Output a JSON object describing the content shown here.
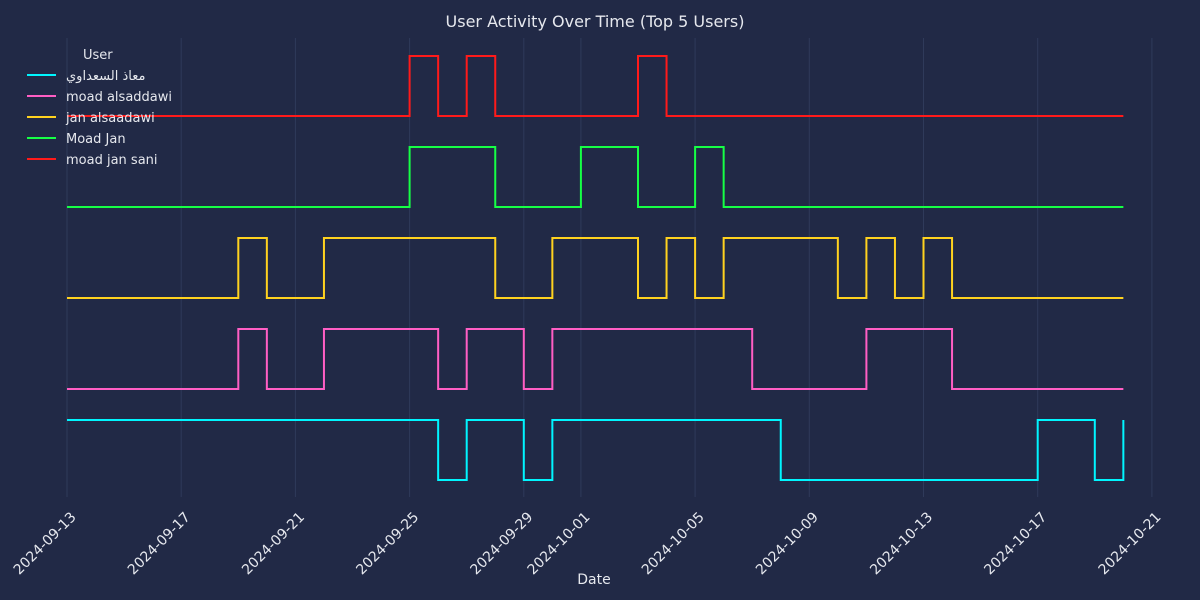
{
  "chart_data": {
    "type": "line",
    "title": "User Activity Over Time (Top 5 Users)",
    "xlabel": "Date",
    "ylabel": "",
    "xlim": [
      "2024-09-13",
      "2024-10-21"
    ],
    "x_ticks": [
      "2024-09-13",
      "2024-09-17",
      "2024-09-21",
      "2024-09-25",
      "2024-09-29",
      "2024-10-01",
      "2024-10-05",
      "2024-10-09",
      "2024-10-13",
      "2024-10-17",
      "2024-10-21"
    ],
    "grid": true,
    "y_axis_visible": false,
    "legend": {
      "title": "User",
      "placement": "top-left"
    },
    "line_style": "step-post",
    "dates": [
      "2024-09-13",
      "2024-09-14",
      "2024-09-15",
      "2024-09-16",
      "2024-09-17",
      "2024-09-18",
      "2024-09-19",
      "2024-09-20",
      "2024-09-21",
      "2024-09-22",
      "2024-09-23",
      "2024-09-24",
      "2024-09-25",
      "2024-09-26",
      "2024-09-27",
      "2024-09-28",
      "2024-09-29",
      "2024-09-30",
      "2024-10-01",
      "2024-10-02",
      "2024-10-03",
      "2024-10-04",
      "2024-10-05",
      "2024-10-06",
      "2024-10-07",
      "2024-10-08",
      "2024-10-09",
      "2024-10-10",
      "2024-10-11",
      "2024-10-12",
      "2024-10-13",
      "2024-10-14",
      "2024-10-15",
      "2024-10-16",
      "2024-10-17",
      "2024-10-18",
      "2024-10-19",
      "2024-10-20"
    ],
    "series": [
      {
        "name": "معاذ السعداوي",
        "color": "#00f5ff",
        "level": 0,
        "values": [
          1,
          1,
          1,
          1,
          1,
          1,
          1,
          1,
          1,
          1,
          1,
          1,
          1,
          0,
          1,
          1,
          0,
          1,
          1,
          1,
          1,
          1,
          1,
          1,
          1,
          0,
          0,
          0,
          0,
          0,
          0,
          0,
          0,
          0,
          1,
          1,
          0,
          1
        ]
      },
      {
        "name": "moad alsaddawi",
        "color": "#ff5ec4",
        "level": 1,
        "values": [
          0,
          0,
          0,
          0,
          0,
          0,
          1,
          0,
          0,
          1,
          1,
          1,
          1,
          0,
          1,
          1,
          0,
          1,
          1,
          1,
          1,
          1,
          1,
          1,
          0,
          0,
          0,
          0,
          1,
          1,
          1,
          0,
          0,
          0,
          0,
          0,
          0,
          0
        ]
      },
      {
        "name": "jan alsaadawi",
        "color": "#ffd21f",
        "level": 2,
        "values": [
          0,
          0,
          0,
          0,
          0,
          0,
          1,
          0,
          0,
          1,
          1,
          1,
          1,
          1,
          1,
          0,
          0,
          1,
          1,
          1,
          0,
          1,
          0,
          1,
          1,
          1,
          1,
          0,
          1,
          0,
          1,
          0,
          0,
          0,
          0,
          0,
          0,
          0
        ]
      },
      {
        "name": "Moad Jan",
        "color": "#16ff45",
        "level": 3,
        "values": [
          0,
          0,
          0,
          0,
          0,
          0,
          0,
          0,
          0,
          0,
          0,
          0,
          1,
          1,
          1,
          0,
          0,
          0,
          1,
          1,
          0,
          0,
          1,
          0,
          0,
          0,
          0,
          0,
          0,
          0,
          0,
          0,
          0,
          0,
          0,
          0,
          0,
          0
        ]
      },
      {
        "name": "moad jan sani",
        "color": "#ff1a1a",
        "level": 4,
        "values": [
          0,
          0,
          0,
          0,
          0,
          0,
          0,
          0,
          0,
          0,
          0,
          0,
          1,
          0,
          1,
          0,
          0,
          0,
          0,
          0,
          1,
          0,
          0,
          0,
          0,
          0,
          0,
          0,
          0,
          0,
          0,
          0,
          0,
          0,
          0,
          0,
          0,
          0
        ]
      }
    ]
  }
}
